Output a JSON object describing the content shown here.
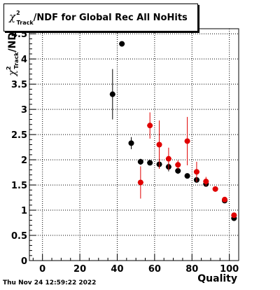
{
  "chart_data": {
    "type": "scatter",
    "title": "χ²Track/NDF for Global Rec All NoHits",
    "title_parts": {
      "chi": "χ",
      "sup": "2",
      "sub": "Track",
      "rest": "/NDF for Global Rec All NoHits"
    },
    "ylabel": "χ²Track/ND",
    "ylabel_parts": {
      "chi": "χ",
      "sup": "2",
      "sub": "Track",
      "rest": "/ND"
    },
    "xlabel": "Quality",
    "xlim": [
      -7,
      105
    ],
    "ylim": [
      0,
      4.6
    ],
    "xticks": [
      0,
      20,
      40,
      60,
      80,
      100
    ],
    "yticks": [
      0,
      0.5,
      1,
      1.5,
      2,
      2.5,
      3,
      3.5,
      4,
      4.5
    ],
    "grid": true,
    "series": [
      {
        "color": "#000000",
        "points": [
          {
            "x": 37.5,
            "y": 3.3,
            "err": 0.5
          },
          {
            "x": 42.5,
            "y": 4.3,
            "err": 0.04
          },
          {
            "x": 47.5,
            "y": 2.33,
            "err": 0.12
          },
          {
            "x": 52.5,
            "y": 1.96,
            "err": 0.06
          },
          {
            "x": 57.5,
            "y": 1.94,
            "err": 0.05
          },
          {
            "x": 62.5,
            "y": 1.91,
            "err": 0.06
          },
          {
            "x": 67.5,
            "y": 1.86,
            "err": 0.09
          },
          {
            "x": 72.5,
            "y": 1.78,
            "err": 0.06
          },
          {
            "x": 77.5,
            "y": 1.68,
            "err": 0.04
          },
          {
            "x": 82.5,
            "y": 1.6,
            "err": 0.05
          },
          {
            "x": 87.5,
            "y": 1.52,
            "err": 0.05
          },
          {
            "x": 97.5,
            "y": 1.19,
            "err": 0.04
          },
          {
            "x": 102.5,
            "y": 0.84,
            "err": 0.04
          }
        ]
      },
      {
        "color": "#e00000",
        "points": [
          {
            "x": 52.5,
            "y": 1.55,
            "err": 0.32
          },
          {
            "x": 57.5,
            "y": 2.68,
            "err": 0.26
          },
          {
            "x": 62.5,
            "y": 2.3,
            "err": 0.48
          },
          {
            "x": 67.5,
            "y": 2.02,
            "err": 0.22
          },
          {
            "x": 72.5,
            "y": 1.9,
            "err": 0.09
          },
          {
            "x": 77.5,
            "y": 2.37,
            "err": 0.48
          },
          {
            "x": 82.5,
            "y": 1.76,
            "err": 0.2
          },
          {
            "x": 87.5,
            "y": 1.57,
            "err": 0.09
          },
          {
            "x": 92.5,
            "y": 1.42,
            "err": 0.04
          },
          {
            "x": 97.5,
            "y": 1.21,
            "err": 0.04
          },
          {
            "x": 102.5,
            "y": 0.9,
            "err": 0.03
          }
        ]
      }
    ]
  },
  "timestamp": "Thu Nov 24 12:59:22 2022"
}
